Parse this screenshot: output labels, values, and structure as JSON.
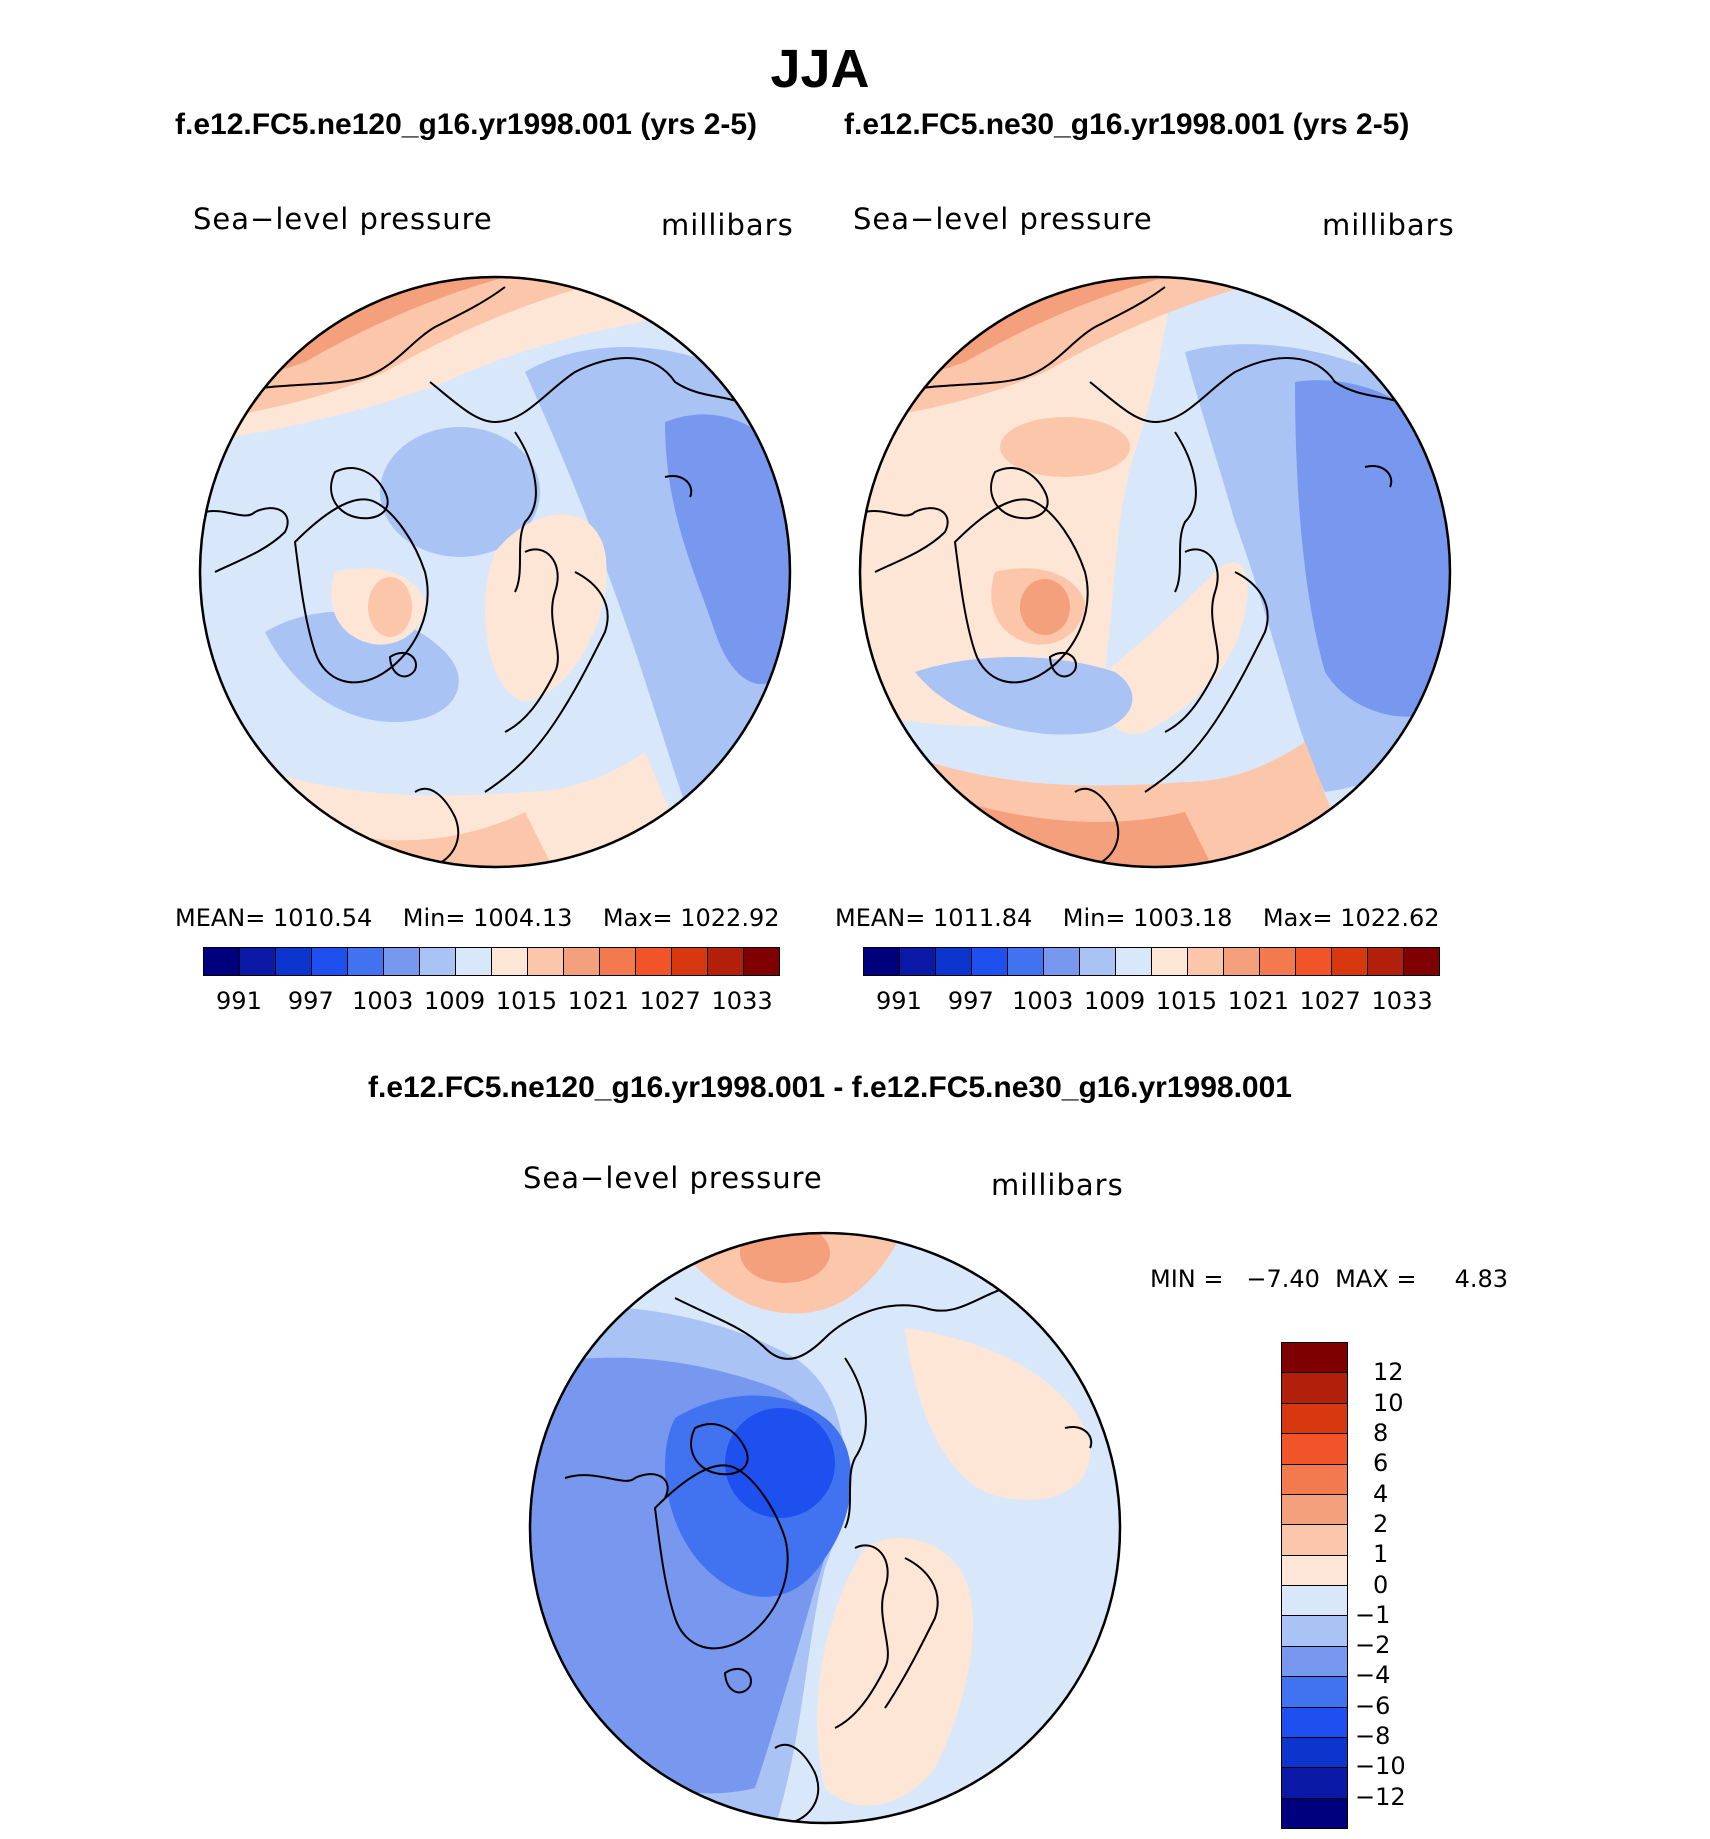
{
  "figure": {
    "title": "JJA",
    "panels": [
      {
        "case": "f.e12.FC5.ne120_g16.yr1998.001 (yrs 2-5)",
        "variable": "Sea−level pressure",
        "units": "millibars",
        "stats": {
          "mean_label": "MEAN=",
          "mean": "1010.54",
          "min_label": "Min=",
          "min": "1004.13",
          "max_label": "Max=",
          "max": "1022.92"
        }
      },
      {
        "case": "f.e12.FC5.ne30_g16.yr1998.001 (yrs 2-5)",
        "variable": "Sea−level pressure",
        "units": "millibars",
        "stats": {
          "mean_label": "MEAN=",
          "mean": "1011.84",
          "min_label": "Min=",
          "min": "1003.18",
          "max_label": "Max=",
          "max": "1022.62"
        }
      }
    ],
    "difference": {
      "title": "f.e12.FC5.ne120_g16.yr1998.001 - f.e12.FC5.ne30_g16.yr1998.001",
      "variable": "Sea−level pressure",
      "units": "millibars",
      "minmax": "MIN =   −7.40  MAX =     4.83"
    }
  },
  "chart_data": [
    {
      "type": "heatmap",
      "projection": "north-polar-stereographic",
      "title": "f.e12.FC5.ne120_g16.yr1998.001 (yrs 2-5)",
      "variable": "Sea-level pressure",
      "units": "millibars",
      "mean": 1010.54,
      "min": 1004.13,
      "max": 1022.92,
      "colorbar_levels": [
        991,
        994,
        997,
        1000,
        1003,
        1006,
        1009,
        1012,
        1015,
        1018,
        1021,
        1024,
        1027,
        1030,
        1033
      ],
      "colorbar_tick_labels": [
        "991",
        "997",
        "1003",
        "1009",
        "1015",
        "1021",
        "1027",
        "1033"
      ]
    },
    {
      "type": "heatmap",
      "projection": "north-polar-stereographic",
      "title": "f.e12.FC5.ne30_g16.yr1998.001 (yrs 2-5)",
      "variable": "Sea-level pressure",
      "units": "millibars",
      "mean": 1011.84,
      "min": 1003.18,
      "max": 1022.62,
      "colorbar_levels": [
        991,
        994,
        997,
        1000,
        1003,
        1006,
        1009,
        1012,
        1015,
        1018,
        1021,
        1024,
        1027,
        1030,
        1033
      ],
      "colorbar_tick_labels": [
        "991",
        "997",
        "1003",
        "1009",
        "1015",
        "1021",
        "1027",
        "1033"
      ]
    },
    {
      "type": "heatmap",
      "projection": "north-polar-stereographic",
      "title": "f.e12.FC5.ne120_g16.yr1998.001 - f.e12.FC5.ne30_g16.yr1998.001",
      "variable": "Sea-level pressure",
      "units": "millibars",
      "min": -7.4,
      "max": 4.83,
      "colorbar_tick_labels": [
        "12",
        "10",
        "8",
        "6",
        "4",
        "2",
        "1",
        "0",
        "−1",
        "−2",
        "−4",
        "−6",
        "−8",
        "−10",
        "−12"
      ]
    }
  ],
  "palette": {
    "abs": [
      "#00007f",
      "#0a1aa6",
      "#0b35cc",
      "#1e50f0",
      "#4173f0",
      "#7898f0",
      "#a9c3f5",
      "#d8e8fa",
      "#fde6d6",
      "#fbc6a9",
      "#f5a07c",
      "#f27a4e",
      "#f2542a",
      "#d8380f",
      "#b21f0a",
      "#7f0000"
    ],
    "diff": [
      "#7f0000",
      "#b21f0a",
      "#d8380f",
      "#f2542a",
      "#f27a4e",
      "#f5a07c",
      "#fbc6a9",
      "#fde6d6",
      "#d8e8fa",
      "#a9c3f5",
      "#7898f0",
      "#4173f0",
      "#1e50f0",
      "#0b35cc",
      "#0a1aa6",
      "#00007f"
    ]
  }
}
